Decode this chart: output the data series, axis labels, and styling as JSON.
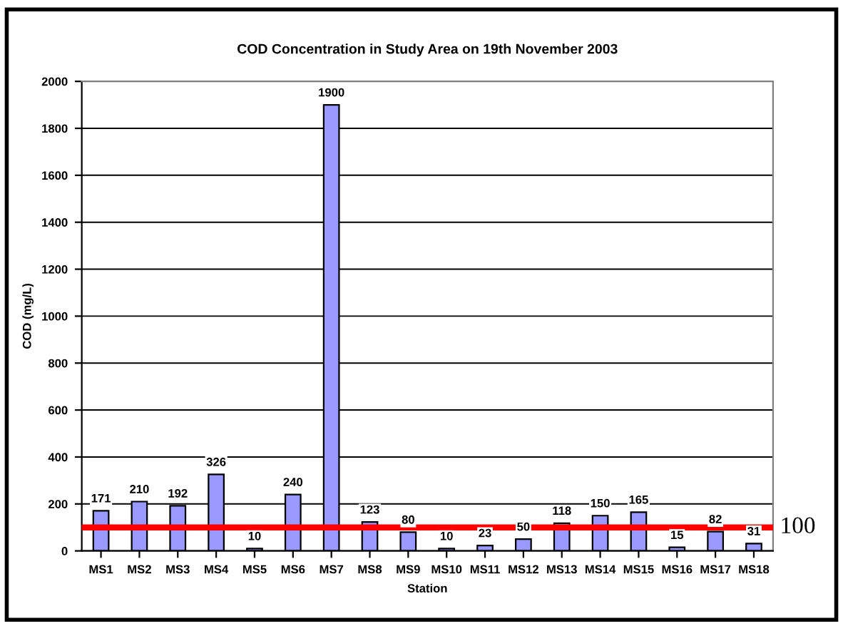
{
  "chart_data": {
    "type": "bar",
    "title": "COD Concentration in Study Area on 19th November 2003",
    "xlabel": "Station",
    "ylabel": "COD (mg/L)",
    "categories": [
      "MS1",
      "MS2",
      "MS3",
      "MS4",
      "MS5",
      "MS6",
      "MS7",
      "MS8",
      "MS9",
      "MS10",
      "MS11",
      "MS12",
      "MS13",
      "MS14",
      "MS15",
      "MS16",
      "MS17",
      "MS18"
    ],
    "values": [
      171,
      210,
      192,
      326,
      10,
      240,
      1900,
      123,
      80,
      10,
      23,
      50,
      118,
      150,
      165,
      15,
      82,
      31
    ],
    "color": "#9999ff",
    "ylim": [
      0,
      2000
    ],
    "yticks": [
      0,
      200,
      400,
      600,
      800,
      1000,
      1200,
      1400,
      1600,
      1800,
      2000
    ],
    "grid": "y",
    "data_labels": true,
    "ref_lines": [
      {
        "axis": "y",
        "value": 100,
        "label": "100",
        "color": "#ff0000"
      }
    ]
  }
}
